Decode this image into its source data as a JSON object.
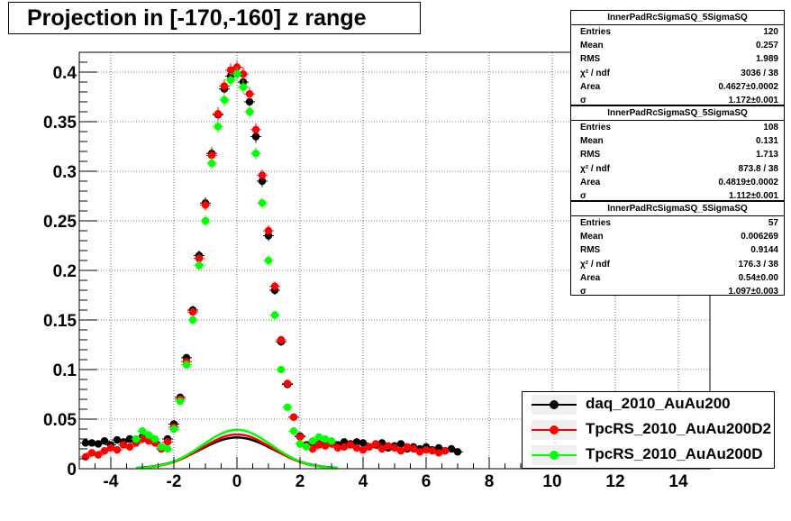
{
  "title": "Projection in [-170,-160] z range",
  "stats_boxes": [
    {
      "name": "InnerPadRcSigmaSQ_5SigmaSQ",
      "rows": [
        {
          "label": "Entries",
          "value": "120"
        },
        {
          "label": "Mean",
          "value": "0.257"
        },
        {
          "label": "RMS",
          "value": "1.989"
        },
        {
          "label": "χ² / ndf",
          "value": "3036 / 38"
        },
        {
          "label": "Area",
          "value": "0.4627±0.0002"
        },
        {
          "label": "σ",
          "value": "1.172±0.001"
        }
      ]
    },
    {
      "name": "InnerPadRcSigmaSQ_5SigmaSQ",
      "rows": [
        {
          "label": "Entries",
          "value": "108"
        },
        {
          "label": "Mean",
          "value": "0.131"
        },
        {
          "label": "RMS",
          "value": "1.713"
        },
        {
          "label": "χ² / ndf",
          "value": "873.8 / 38"
        },
        {
          "label": "Area",
          "value": "0.4819±0.0002"
        },
        {
          "label": "σ",
          "value": "1.112±0.001"
        }
      ]
    },
    {
      "name": "InnerPadRcSigmaSQ_5SigmaSQ",
      "rows": [
        {
          "label": "Entries",
          "value": "57"
        },
        {
          "label": "Mean",
          "value": "0.006269"
        },
        {
          "label": "RMS",
          "value": "0.9144"
        },
        {
          "label": "χ² / ndf",
          "value": "176.3 / 38"
        },
        {
          "label": "Area",
          "value": "0.54±0.00"
        },
        {
          "label": "σ",
          "value": "1.097±0.003"
        }
      ]
    }
  ],
  "legend": [
    {
      "label": "daq_2010_AuAu200",
      "color": "#000000"
    },
    {
      "label": "TpcRS_2010_AuAu200D2",
      "color": "#ff0000"
    },
    {
      "label": "TpcRS_2010_AuAu200D",
      "color": "#00ff00"
    }
  ],
  "chart_data": {
    "type": "scatter",
    "title": "Projection in [-170,-160] z range",
    "xlim": [
      -5,
      15
    ],
    "ylim": [
      0,
      0.42
    ],
    "x_ticks": [
      -4,
      -2,
      0,
      2,
      4,
      6,
      8,
      10,
      12,
      14
    ],
    "x_tick_labels": [
      "-4",
      "-2",
      "0",
      "2",
      "4",
      "6",
      "8",
      "10",
      "12",
      "14"
    ],
    "y_ticks": [
      0,
      0.05,
      0.1,
      0.15,
      0.2,
      0.25,
      0.3,
      0.35,
      0.4
    ],
    "y_tick_labels": [
      "0",
      "0.05",
      "0.1",
      "0.15",
      "0.2",
      "0.25",
      "0.3",
      "0.35",
      "0.4"
    ],
    "grid": true,
    "series": [
      {
        "name": "daq_2010_AuAu200",
        "color": "#000000",
        "x": [
          -4.8,
          -4.6,
          -4.4,
          -4.2,
          -4.0,
          -3.8,
          -3.6,
          -3.4,
          -3.2,
          -3.0,
          -2.8,
          -2.6,
          -2.4,
          -2.2,
          -2.0,
          -1.8,
          -1.6,
          -1.4,
          -1.2,
          -1.0,
          -0.8,
          -0.6,
          -0.4,
          -0.2,
          0.0,
          0.2,
          0.4,
          0.6,
          0.8,
          1.0,
          1.2,
          1.4,
          1.6,
          1.8,
          2.0,
          2.2,
          2.4,
          2.6,
          2.8,
          3.0,
          3.2,
          3.4,
          3.6,
          3.8,
          4.0,
          4.2,
          4.4,
          4.6,
          4.8,
          5.0,
          5.2,
          5.4,
          5.6,
          5.8,
          6.0,
          6.2,
          6.4,
          6.6,
          6.8,
          7.0
        ],
        "y": [
          0.026,
          0.026,
          0.025,
          0.028,
          0.024,
          0.029,
          0.027,
          0.03,
          0.028,
          0.032,
          0.031,
          0.027,
          0.022,
          0.03,
          0.045,
          0.072,
          0.112,
          0.16,
          0.215,
          0.268,
          0.318,
          0.357,
          0.383,
          0.396,
          0.398,
          0.39,
          0.37,
          0.335,
          0.29,
          0.235,
          0.18,
          0.128,
          0.085,
          0.052,
          0.033,
          0.024,
          0.022,
          0.025,
          0.024,
          0.026,
          0.024,
          0.027,
          0.025,
          0.027,
          0.026,
          0.022,
          0.024,
          0.026,
          0.021,
          0.023,
          0.025,
          0.02,
          0.022,
          0.02,
          0.022,
          0.019,
          0.021,
          0.018,
          0.02,
          0.017
        ]
      },
      {
        "name": "TpcRS_2010_AuAu200D2",
        "color": "#ff0000",
        "x": [
          -4.8,
          -4.6,
          -4.4,
          -4.2,
          -4.0,
          -3.8,
          -3.6,
          -3.4,
          -3.2,
          -3.0,
          -2.8,
          -2.6,
          -2.4,
          -2.2,
          -2.0,
          -1.8,
          -1.6,
          -1.4,
          -1.2,
          -1.0,
          -0.8,
          -0.6,
          -0.4,
          -0.2,
          0.0,
          0.2,
          0.4,
          0.6,
          0.8,
          1.0,
          1.2,
          1.4,
          1.6,
          1.8,
          2.0,
          2.2,
          2.4,
          2.6,
          2.8,
          3.0,
          3.2,
          3.4,
          3.6,
          3.8,
          4.0,
          4.2,
          4.4,
          4.6,
          4.8,
          5.0,
          5.2,
          5.4,
          5.6,
          5.8,
          6.0,
          6.2,
          6.4,
          6.6
        ],
        "y": [
          0.012,
          0.016,
          0.014,
          0.018,
          0.021,
          0.019,
          0.024,
          0.022,
          0.026,
          0.03,
          0.028,
          0.026,
          0.02,
          0.027,
          0.042,
          0.07,
          0.108,
          0.158,
          0.212,
          0.266,
          0.316,
          0.358,
          0.386,
          0.402,
          0.405,
          0.398,
          0.378,
          0.342,
          0.296,
          0.24,
          0.184,
          0.13,
          0.086,
          0.052,
          0.032,
          0.023,
          0.02,
          0.024,
          0.023,
          0.025,
          0.021,
          0.022,
          0.024,
          0.021,
          0.019,
          0.022,
          0.025,
          0.02,
          0.023,
          0.021,
          0.018,
          0.022,
          0.02,
          0.017,
          0.019,
          0.018,
          0.016,
          0.018
        ]
      },
      {
        "name": "TpcRS_2010_AuAu200D",
        "color": "#00ff00",
        "x": [
          -3.2,
          -3.0,
          -2.8,
          -2.6,
          -2.4,
          -2.2,
          -2.0,
          -1.8,
          -1.6,
          -1.4,
          -1.2,
          -1.0,
          -0.8,
          -0.6,
          -0.4,
          -0.2,
          0.0,
          0.2,
          0.4,
          0.6,
          0.8,
          1.0,
          1.2,
          1.4,
          1.6,
          1.8,
          2.0,
          2.2,
          2.4,
          2.6,
          2.8,
          3.0
        ],
        "y": [
          0.03,
          0.038,
          0.034,
          0.03,
          0.022,
          0.02,
          0.04,
          0.068,
          0.105,
          0.15,
          0.205,
          0.25,
          0.308,
          0.345,
          0.372,
          0.392,
          0.398,
          0.385,
          0.36,
          0.318,
          0.268,
          0.21,
          0.155,
          0.1,
          0.062,
          0.038,
          0.025,
          0.022,
          0.028,
          0.032,
          0.03,
          0.028
        ]
      }
    ],
    "fits": [
      {
        "name": "daq_2010_AuAu200",
        "color": "#000000",
        "area": 0.4627,
        "sigma": 1.172,
        "mean": 0.0
      },
      {
        "name": "TpcRS_2010_AuAu200D2",
        "color": "#ff0000",
        "area": 0.4819,
        "sigma": 1.112,
        "mean": 0.0
      },
      {
        "name": "TpcRS_2010_AuAu200D",
        "color": "#00ff00",
        "area": 0.54,
        "sigma": 1.097,
        "mean": 0.0
      }
    ]
  }
}
